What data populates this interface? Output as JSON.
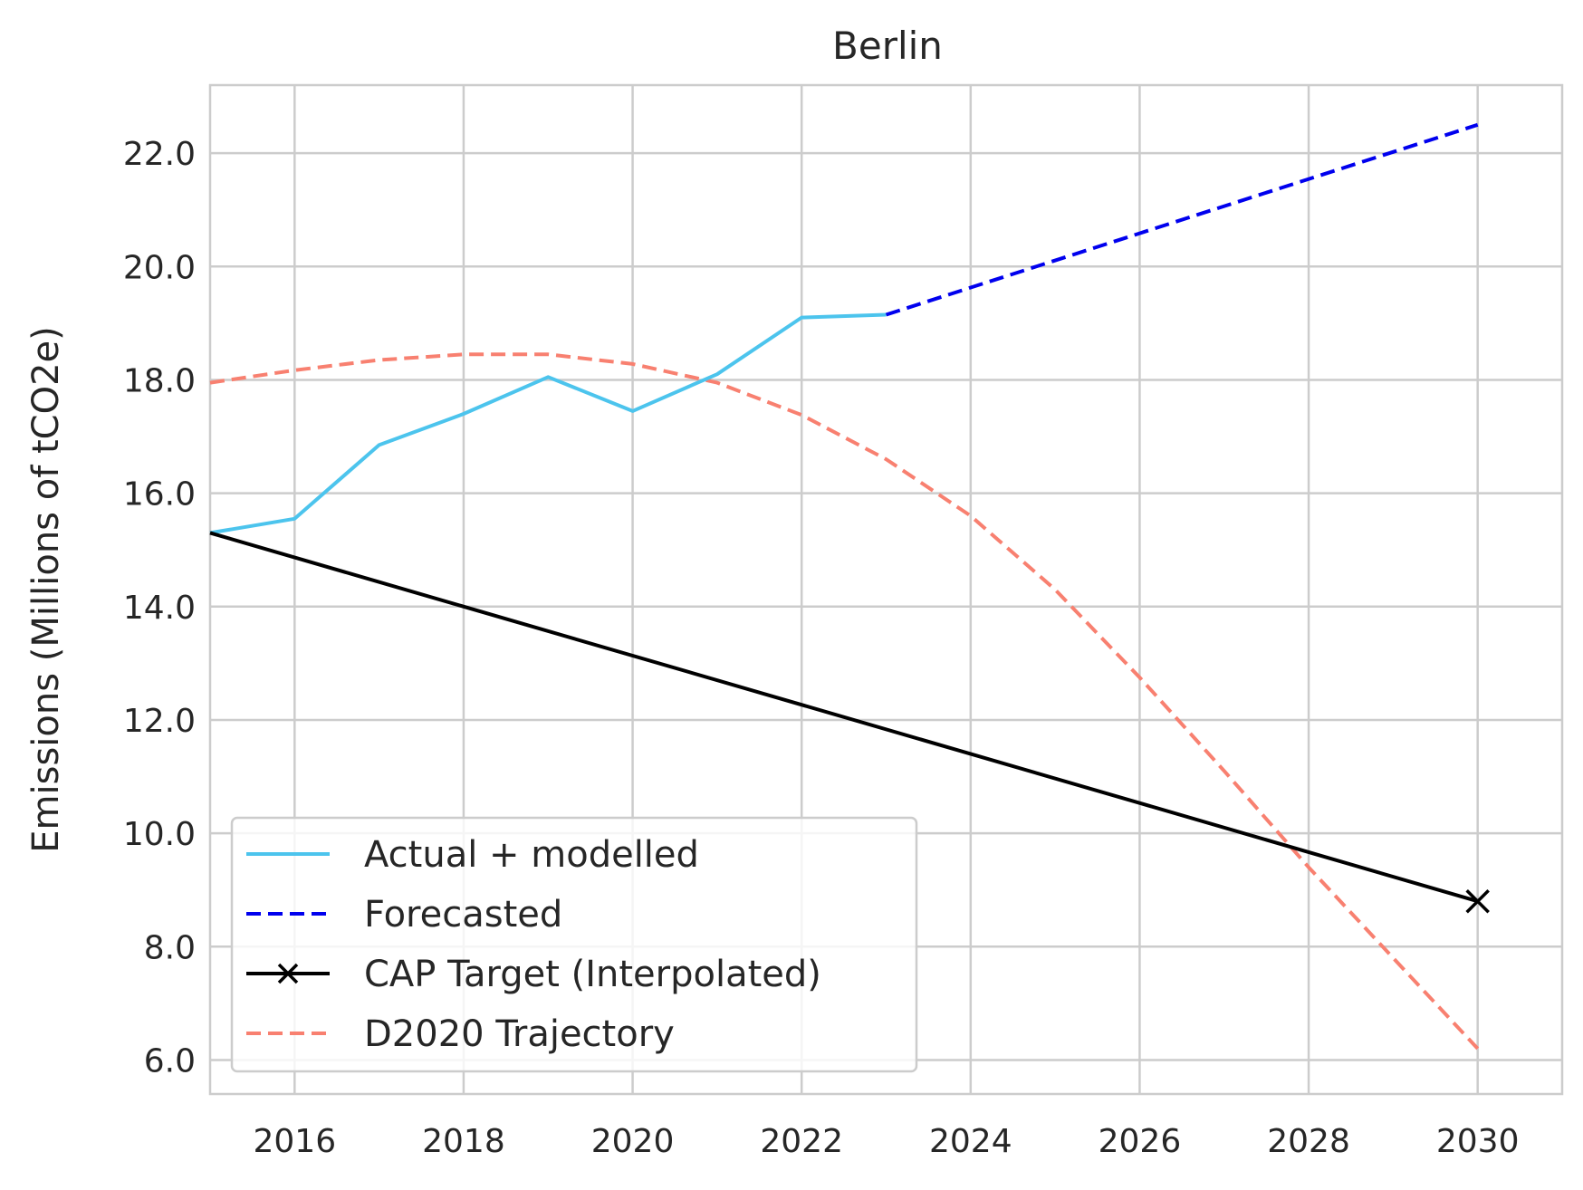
{
  "chart_data": {
    "type": "line",
    "title": "Berlin",
    "xlabel": "",
    "ylabel": "Emissions (Millions of tCO2e)",
    "xlim": [
      2015,
      2031
    ],
    "ylim": [
      5.4,
      23.2
    ],
    "x_ticks": [
      2016,
      2018,
      2020,
      2022,
      2024,
      2026,
      2028,
      2030
    ],
    "y_ticks": [
      6.0,
      8.0,
      10.0,
      12.0,
      14.0,
      16.0,
      18.0,
      20.0,
      22.0
    ],
    "y_tick_labels": [
      "6.0",
      "8.0",
      "10.0",
      "12.0",
      "14.0",
      "16.0",
      "18.0",
      "20.0",
      "22.0"
    ],
    "grid": true,
    "legend_position": "lower-left",
    "series": [
      {
        "name": "Actual + modelled",
        "color": "#4cc4ed",
        "style": "solid",
        "marker": "none",
        "x": [
          2015,
          2016,
          2017,
          2018,
          2019,
          2020,
          2021,
          2022,
          2023
        ],
        "y": [
          15.3,
          15.55,
          16.85,
          17.4,
          18.05,
          17.45,
          18.1,
          19.1,
          19.15
        ]
      },
      {
        "name": "Forecasted",
        "color": "#0000ee",
        "style": "dashed",
        "marker": "none",
        "x": [
          2023,
          2030
        ],
        "y": [
          19.15,
          22.5
        ]
      },
      {
        "name": "CAP Target (Interpolated)",
        "color": "#000000",
        "style": "solid",
        "marker": "x-last",
        "x": [
          2015,
          2030
        ],
        "y": [
          15.3,
          8.8
        ]
      },
      {
        "name": "D2020 Trajectory",
        "color": "#f88070",
        "style": "dashed",
        "marker": "none",
        "x": [
          2015,
          2016,
          2017,
          2018,
          2019,
          2020,
          2021,
          2022,
          2023,
          2024,
          2025,
          2026,
          2027,
          2028,
          2029,
          2030
        ],
        "y": [
          17.95,
          18.17,
          18.35,
          18.45,
          18.45,
          18.28,
          17.95,
          17.38,
          16.6,
          15.6,
          14.3,
          12.75,
          11.1,
          9.4,
          7.8,
          6.2
        ]
      }
    ]
  }
}
